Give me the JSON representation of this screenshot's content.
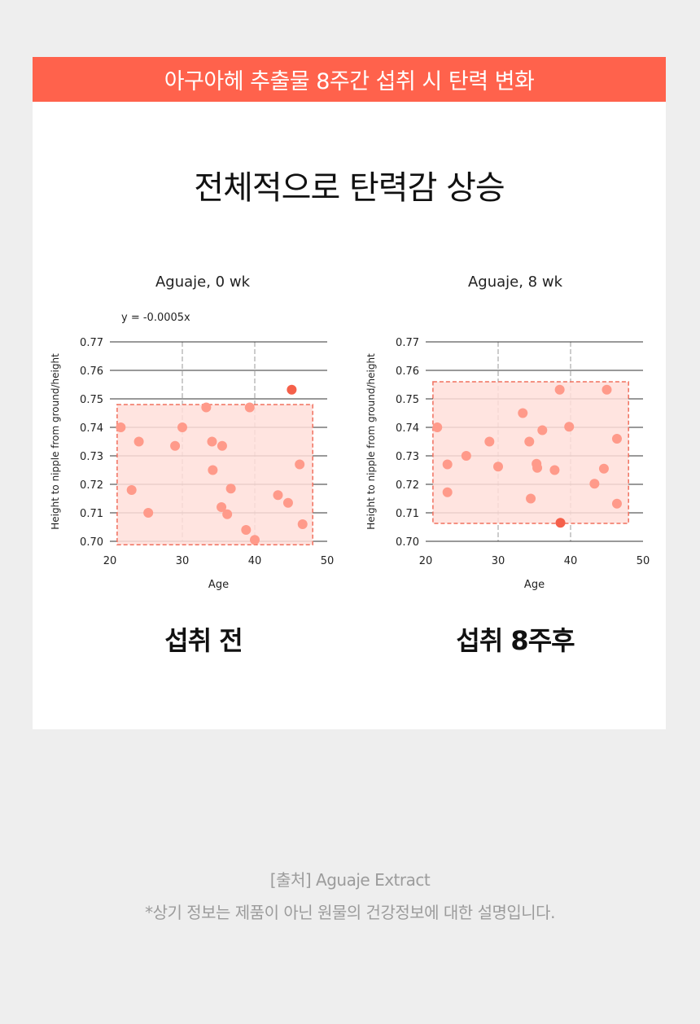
{
  "banner": {
    "title": "아구아헤 추출물 8주간 섭취 시 탄력 변화"
  },
  "headline": "전체적으로 탄력감 상승",
  "colors": {
    "accent": "#ff624c",
    "point": "#ff9a8a",
    "highlight_point": "#f5604a",
    "region_fill": "#ffdfdb",
    "region_border": "#f0705e"
  },
  "captions": {
    "before": "섭취 전",
    "after": "섭취 8주후"
  },
  "footer": {
    "source": "[출처] Aguaje Extract",
    "disclaimer": "*상기 정보는 제품이 아닌 원물의 건강정보에 대한 설명입니다."
  },
  "chart_data": [
    {
      "type": "scatter",
      "title": "Aguaje, 0 wk",
      "annotation": "y = -0.0005x",
      "xlabel": "Age",
      "ylabel": "Height to nipple from ground/height",
      "xlim": [
        20,
        50
      ],
      "ylim": [
        0.7,
        0.77
      ],
      "xticks": [
        "20",
        "30",
        "40",
        "50"
      ],
      "yticks": [
        "0.70",
        "0.71",
        "0.72",
        "0.73",
        "0.74",
        "0.75",
        "0.76",
        "0.77"
      ],
      "grid": "horizontal solid, vertical dashed at 30 and 40",
      "region": {
        "x": [
          21,
          48
        ],
        "y": [
          0.6988,
          0.748
        ]
      },
      "points": [
        {
          "x": 21.5,
          "y": 0.74
        },
        {
          "x": 23.0,
          "y": 0.718
        },
        {
          "x": 24.0,
          "y": 0.735
        },
        {
          "x": 25.3,
          "y": 0.71
        },
        {
          "x": 29.0,
          "y": 0.7335
        },
        {
          "x": 30.0,
          "y": 0.74
        },
        {
          "x": 33.3,
          "y": 0.747
        },
        {
          "x": 34.1,
          "y": 0.735
        },
        {
          "x": 34.2,
          "y": 0.725
        },
        {
          "x": 35.5,
          "y": 0.7335
        },
        {
          "x": 35.4,
          "y": 0.712
        },
        {
          "x": 36.2,
          "y": 0.7095
        },
        {
          "x": 36.7,
          "y": 0.7185
        },
        {
          "x": 38.8,
          "y": 0.704
        },
        {
          "x": 39.3,
          "y": 0.747
        },
        {
          "x": 40.0,
          "y": 0.7005
        },
        {
          "x": 43.2,
          "y": 0.7162
        },
        {
          "x": 44.6,
          "y": 0.7135
        },
        {
          "x": 45.1,
          "y": 0.7532,
          "highlight": true
        },
        {
          "x": 46.2,
          "y": 0.727
        },
        {
          "x": 46.6,
          "y": 0.706
        }
      ]
    },
    {
      "type": "scatter",
      "title": "Aguaje, 8 wk",
      "xlabel": "Age",
      "ylabel": "Height to nipple from ground/height",
      "xlim": [
        20,
        50
      ],
      "ylim": [
        0.7,
        0.77
      ],
      "xticks": [
        "20",
        "30",
        "40",
        "50"
      ],
      "yticks": [
        "0.70",
        "0.71",
        "0.72",
        "0.73",
        "0.74",
        "0.75",
        "0.76",
        "0.77"
      ],
      "grid": "horizontal solid, vertical dashed at 30 and 40",
      "region": {
        "x": [
          21,
          48
        ],
        "y": [
          0.7063,
          0.756
        ]
      },
      "points": [
        {
          "x": 21.6,
          "y": 0.74
        },
        {
          "x": 23.0,
          "y": 0.727
        },
        {
          "x": 23.0,
          "y": 0.7172
        },
        {
          "x": 25.6,
          "y": 0.73
        },
        {
          "x": 28.8,
          "y": 0.735
        },
        {
          "x": 30.0,
          "y": 0.7262
        },
        {
          "x": 33.4,
          "y": 0.745
        },
        {
          "x": 34.3,
          "y": 0.735
        },
        {
          "x": 34.5,
          "y": 0.715
        },
        {
          "x": 35.3,
          "y": 0.7272
        },
        {
          "x": 35.4,
          "y": 0.7258
        },
        {
          "x": 36.1,
          "y": 0.739
        },
        {
          "x": 37.8,
          "y": 0.725
        },
        {
          "x": 38.5,
          "y": 0.7532
        },
        {
          "x": 38.6,
          "y": 0.7065,
          "highlight": true
        },
        {
          "x": 39.8,
          "y": 0.7402
        },
        {
          "x": 43.3,
          "y": 0.7202
        },
        {
          "x": 44.6,
          "y": 0.7255
        },
        {
          "x": 45.0,
          "y": 0.7532
        },
        {
          "x": 46.4,
          "y": 0.736
        },
        {
          "x": 46.4,
          "y": 0.7132
        }
      ]
    }
  ]
}
